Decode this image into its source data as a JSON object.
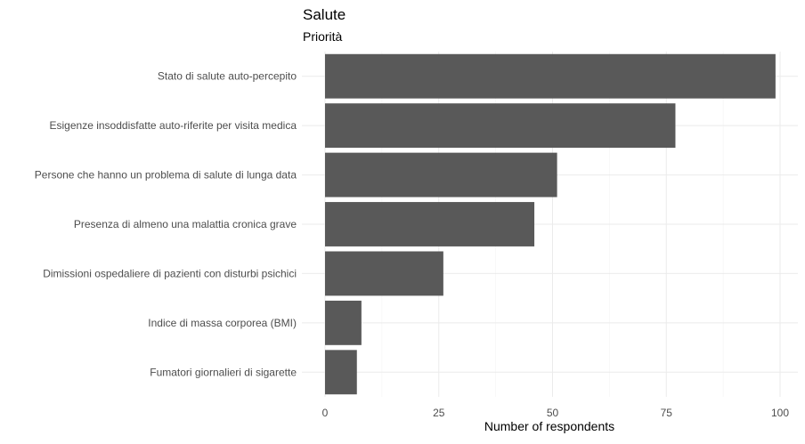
{
  "chart_data": {
    "type": "bar",
    "orientation": "horizontal",
    "title": "Salute",
    "subtitle": "Priorità",
    "xlabel": "Number of respondents",
    "ylabel": "",
    "xlim": [
      0,
      104
    ],
    "x_ticks": [
      0,
      25,
      50,
      75,
      100
    ],
    "grid": true,
    "legend": "none",
    "bar_color": "#595959",
    "categories": [
      "Stato di salute auto-percepito",
      "Esigenze insoddisfatte auto-riferite per visita medica",
      "Persone che hanno un problema di salute di lunga data",
      "Presenza di almeno una malattia cronica grave",
      "Dimissioni ospedaliere di pazienti con disturbi psichici",
      "Indice di massa corporea (BMI)",
      "Fumatori giornalieri di sigarette"
    ],
    "values": [
      99,
      77,
      51,
      46,
      26,
      8,
      7
    ]
  }
}
